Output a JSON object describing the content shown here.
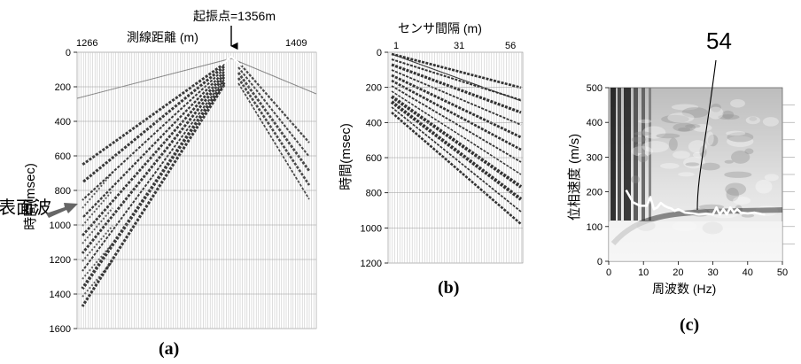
{
  "figure": {
    "panel_a": {
      "caption": "(a)",
      "top_label": "測線距離 (m)",
      "shot_label": "起振点=1356m",
      "x_ticks": [
        "1266",
        "1409"
      ],
      "y_label": "時間(msec)",
      "y_ticks": [
        "0",
        "200",
        "400",
        "600",
        "800",
        "1000",
        "1200",
        "1400",
        "1600"
      ],
      "annotation": "表面波"
    },
    "panel_b": {
      "caption": "(b)",
      "top_label": "センサ間隔 (m)",
      "x_ticks": [
        "1",
        "31",
        "56"
      ],
      "y_label": "時間(msec)",
      "y_ticks": [
        "0",
        "200",
        "400",
        "600",
        "800",
        "1000",
        "1200"
      ]
    },
    "panel_c": {
      "caption": "(c)",
      "callout": "54",
      "x_label": "周波数 (Hz)",
      "x_ticks": [
        "0",
        "10",
        "20",
        "30",
        "40",
        "50"
      ],
      "y_label": "位相速度 (m/s)",
      "y_ticks": [
        "0",
        "100",
        "200",
        "300",
        "400",
        "500"
      ]
    }
  },
  "chart_data": [
    {
      "type": "heatmap",
      "title": "",
      "x": [
        1266,
        1409
      ],
      "xlabel": "測線距離 (m)",
      "ylabel": "時間(msec)",
      "ylim": [
        1600,
        0
      ],
      "annotations": [
        "起振点=1356m",
        "表面波"
      ],
      "shot_point_m": 1356
    },
    {
      "type": "heatmap",
      "title": "",
      "x": [
        1,
        56
      ],
      "xlabel": "センサ間隔 (m)",
      "ylabel": "時間(msec)",
      "ylim": [
        1200,
        0
      ]
    },
    {
      "type": "line",
      "title": "",
      "xlabel": "周波数 (Hz)",
      "ylabel": "位相速度 (m/s)",
      "xlim": [
        0,
        50
      ],
      "ylim": [
        0,
        500
      ],
      "series": [
        {
          "x": [
            5,
            7,
            9,
            11,
            12,
            13,
            14,
            15,
            16,
            17,
            18,
            19,
            20,
            22,
            24,
            26,
            28,
            30,
            31,
            32,
            33,
            34,
            35,
            36,
            37,
            38,
            40,
            42,
            44,
            45
          ],
          "y": [
            205,
            170,
            160,
            160,
            185,
            150,
            155,
            168,
            160,
            155,
            152,
            145,
            150,
            140,
            138,
            135,
            137,
            135,
            155,
            135,
            150,
            135,
            155,
            140,
            150,
            140,
            138,
            140,
            136,
            135
          ]
        }
      ],
      "annotations": [
        "54"
      ]
    }
  ]
}
